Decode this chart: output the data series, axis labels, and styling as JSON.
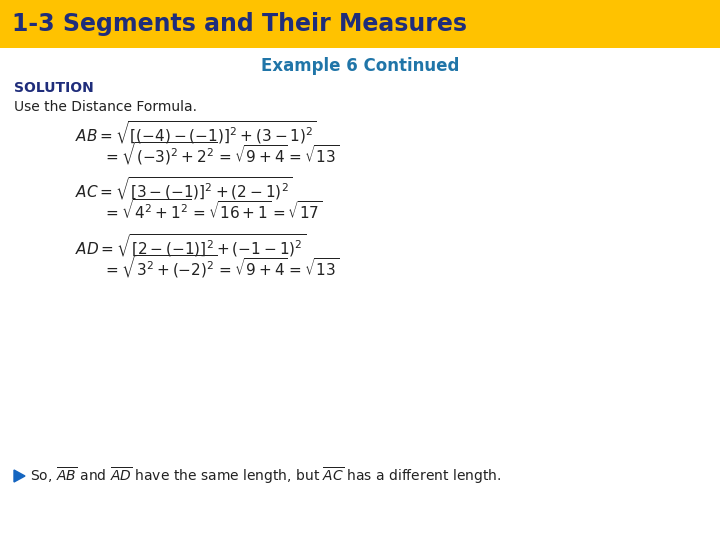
{
  "title_text": "1-3 Segments and Their Measures",
  "title_bg_color": "#FFC200",
  "title_text_color": "#1F2D7B",
  "subtitle_text": "Example 6 Continued",
  "subtitle_color": "#2075A8",
  "solution_label": "SOLUTION",
  "solution_color": "#1F2D7B",
  "use_text": "Use the Distance Formula.",
  "body_text_color": "#222222",
  "bg_color": "#FFFFFF",
  "arrow_color": "#1565C0",
  "title_fontsize": 17,
  "subtitle_fontsize": 12,
  "solution_fontsize": 10,
  "use_fontsize": 10,
  "eq_fontsize": 11,
  "conclusion_fontsize": 10,
  "title_bar_height": 48
}
